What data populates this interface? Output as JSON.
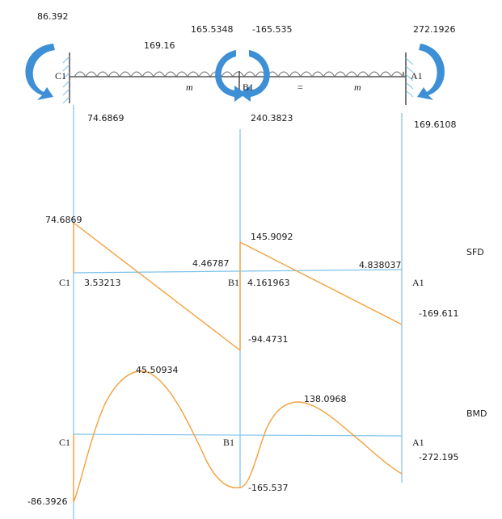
{
  "colors": {
    "guide_lines": "#7cc2ea",
    "diagram_curves": "#f4a03c",
    "moment_arrows": "#3d8fd6",
    "beam": "#555555",
    "load": "#6a6a6a"
  },
  "beam": {
    "supports": [
      "C1",
      "B1",
      "A1"
    ],
    "span_labels": [
      "m",
      "=",
      "m"
    ],
    "load_value": "169.16",
    "moments": {
      "left_end": "86.392",
      "mid_left": "165.5348",
      "mid_right": "-165.535",
      "right_end": "272.1926"
    },
    "reactions": {
      "c1": "74.6869",
      "b1": "240.3823",
      "a1": "169.6108"
    }
  },
  "sfd": {
    "title": "SFD",
    "support_labels": [
      "C1",
      "B1",
      "A1"
    ],
    "values": {
      "c1_start": "74.6869",
      "zero_cross_1": "3.53213",
      "b1_left_offset": "4.46787",
      "b1_right_peak": "145.9092",
      "zero_cross_2": "4.161963",
      "a1_offset": "4.838037",
      "b1_left_end": "-94.4731",
      "a1_end": "-169.611"
    }
  },
  "bmd": {
    "title": "BMD",
    "support_labels": [
      "C1",
      "B1",
      "A1"
    ],
    "values": {
      "span1_max": "45.50934",
      "span2_max": "138.0968",
      "a1_end": "-272.195",
      "b1_min": "-165.537",
      "c1_start": "-86.3926"
    }
  }
}
